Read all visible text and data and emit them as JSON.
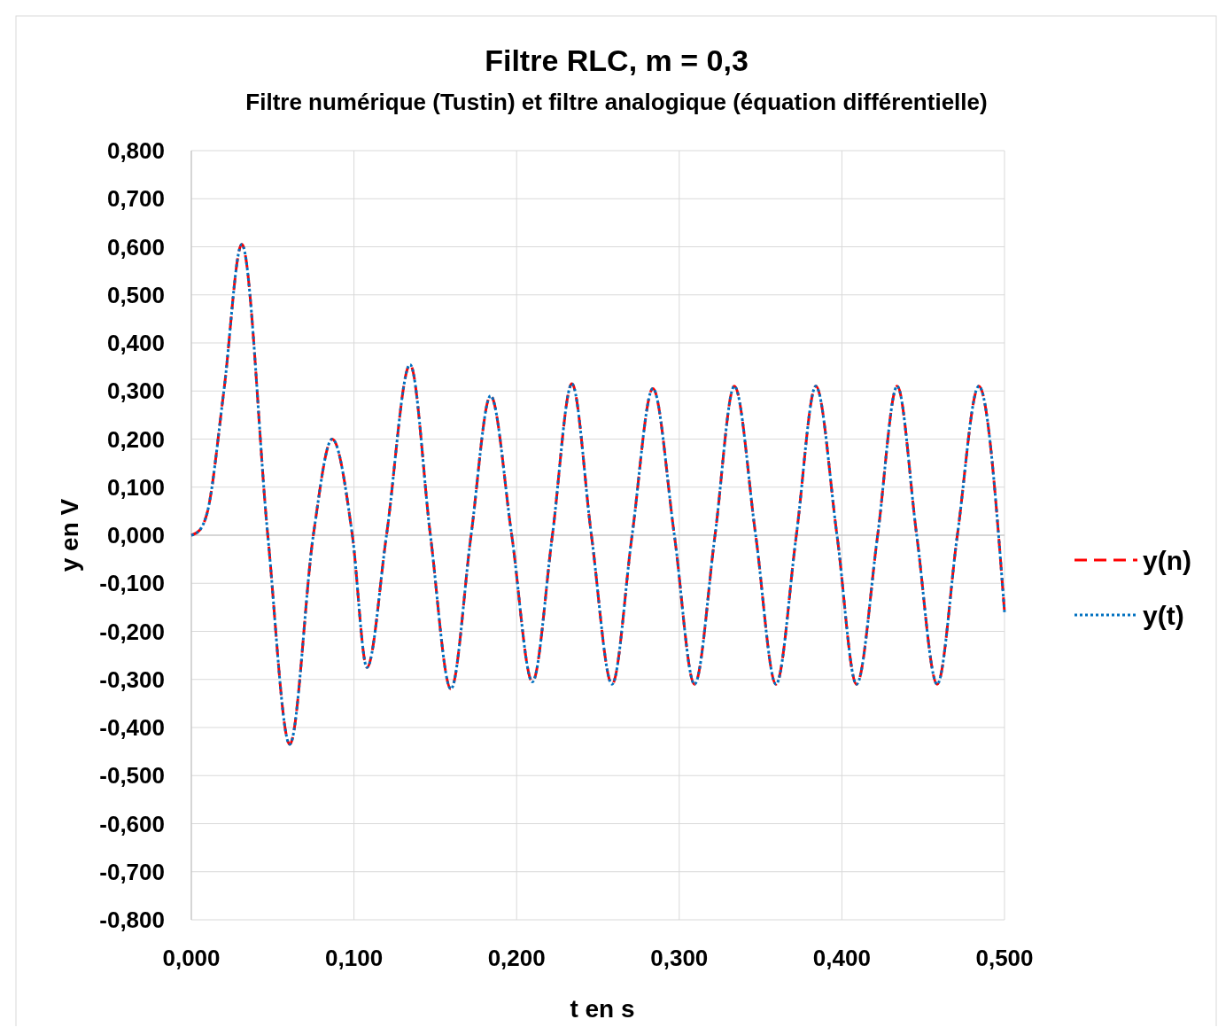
{
  "chart_data": {
    "type": "line",
    "title": "Filtre RLC, m = 0,3",
    "subtitle": "Filtre numérique (Tustin) et filtre analogique (équation différentielle)",
    "xlabel": "t en s",
    "ylabel": "y en V",
    "x": [
      0,
      0.005,
      0.01,
      0.02,
      0.031,
      0.047,
      0.0605,
      0.075,
      0.0866,
      0.099,
      0.108,
      0.12,
      0.1345,
      0.147,
      0.1596,
      0.172,
      0.184,
      0.197,
      0.2097,
      0.222,
      0.234,
      0.246,
      0.2587,
      0.271,
      0.2838,
      0.297,
      0.3094,
      0.322,
      0.3339,
      0.347,
      0.3595,
      0.372,
      0.384,
      0.397,
      0.409,
      0.422,
      0.434,
      0.446,
      0.4586,
      0.471,
      0.4842,
      0.5
    ],
    "series": [
      {
        "name": "y(n)",
        "color": "#ff0000",
        "line_style": "dashed",
        "values": [
          0,
          0.01,
          0.05,
          0.3,
          0.605,
          0,
          -0.435,
          0,
          0.2,
          0,
          -0.275,
          0,
          0.355,
          0,
          -0.32,
          0,
          0.29,
          0,
          -0.305,
          0,
          0.315,
          0,
          -0.31,
          0,
          0.305,
          0,
          -0.31,
          0,
          0.31,
          0,
          -0.31,
          0,
          0.31,
          0,
          -0.31,
          0,
          0.31,
          0,
          -0.31,
          0,
          0.31,
          -0.16
        ]
      },
      {
        "name": "y(t)",
        "color": "#0070c0",
        "line_style": "dotted",
        "values": [
          0,
          0.01,
          0.05,
          0.3,
          0.605,
          0,
          -0.435,
          0,
          0.2,
          0,
          -0.275,
          0,
          0.355,
          0,
          -0.32,
          0,
          0.29,
          0,
          -0.305,
          0,
          0.315,
          0,
          -0.31,
          0,
          0.305,
          0,
          -0.31,
          0,
          0.31,
          0,
          -0.31,
          0,
          0.31,
          0,
          -0.31,
          0,
          0.31,
          0,
          -0.31,
          0,
          0.31,
          -0.16
        ]
      }
    ],
    "xlim": [
      0,
      0.5
    ],
    "xticks": [
      {
        "value": 0,
        "label": "0,000"
      },
      {
        "value": 0.1,
        "label": "0,100"
      },
      {
        "value": 0.2,
        "label": "0,200"
      },
      {
        "value": 0.3,
        "label": "0,300"
      },
      {
        "value": 0.4,
        "label": "0,400"
      },
      {
        "value": 0.5,
        "label": "0,500"
      }
    ],
    "ylim": [
      -0.8,
      0.8
    ],
    "yticks": [
      {
        "value": -0.8,
        "label": "-0,800"
      },
      {
        "value": -0.7,
        "label": "-0,700"
      },
      {
        "value": -0.6,
        "label": "-0,600"
      },
      {
        "value": -0.5,
        "label": "-0,500"
      },
      {
        "value": -0.4,
        "label": "-0,400"
      },
      {
        "value": -0.3,
        "label": "-0,300"
      },
      {
        "value": -0.2,
        "label": "-0,200"
      },
      {
        "value": -0.1,
        "label": "-0,100"
      },
      {
        "value": 0,
        "label": "0,000"
      },
      {
        "value": 0.1,
        "label": "0,100"
      },
      {
        "value": 0.2,
        "label": "0,200"
      },
      {
        "value": 0.3,
        "label": "0,300"
      },
      {
        "value": 0.4,
        "label": "0,400"
      },
      {
        "value": 0.5,
        "label": "0,500"
      },
      {
        "value": 0.6,
        "label": "0,600"
      },
      {
        "value": 0.7,
        "label": "0,700"
      },
      {
        "value": 0.8,
        "label": "0,800"
      }
    ],
    "grid": true,
    "legend": "right"
  }
}
